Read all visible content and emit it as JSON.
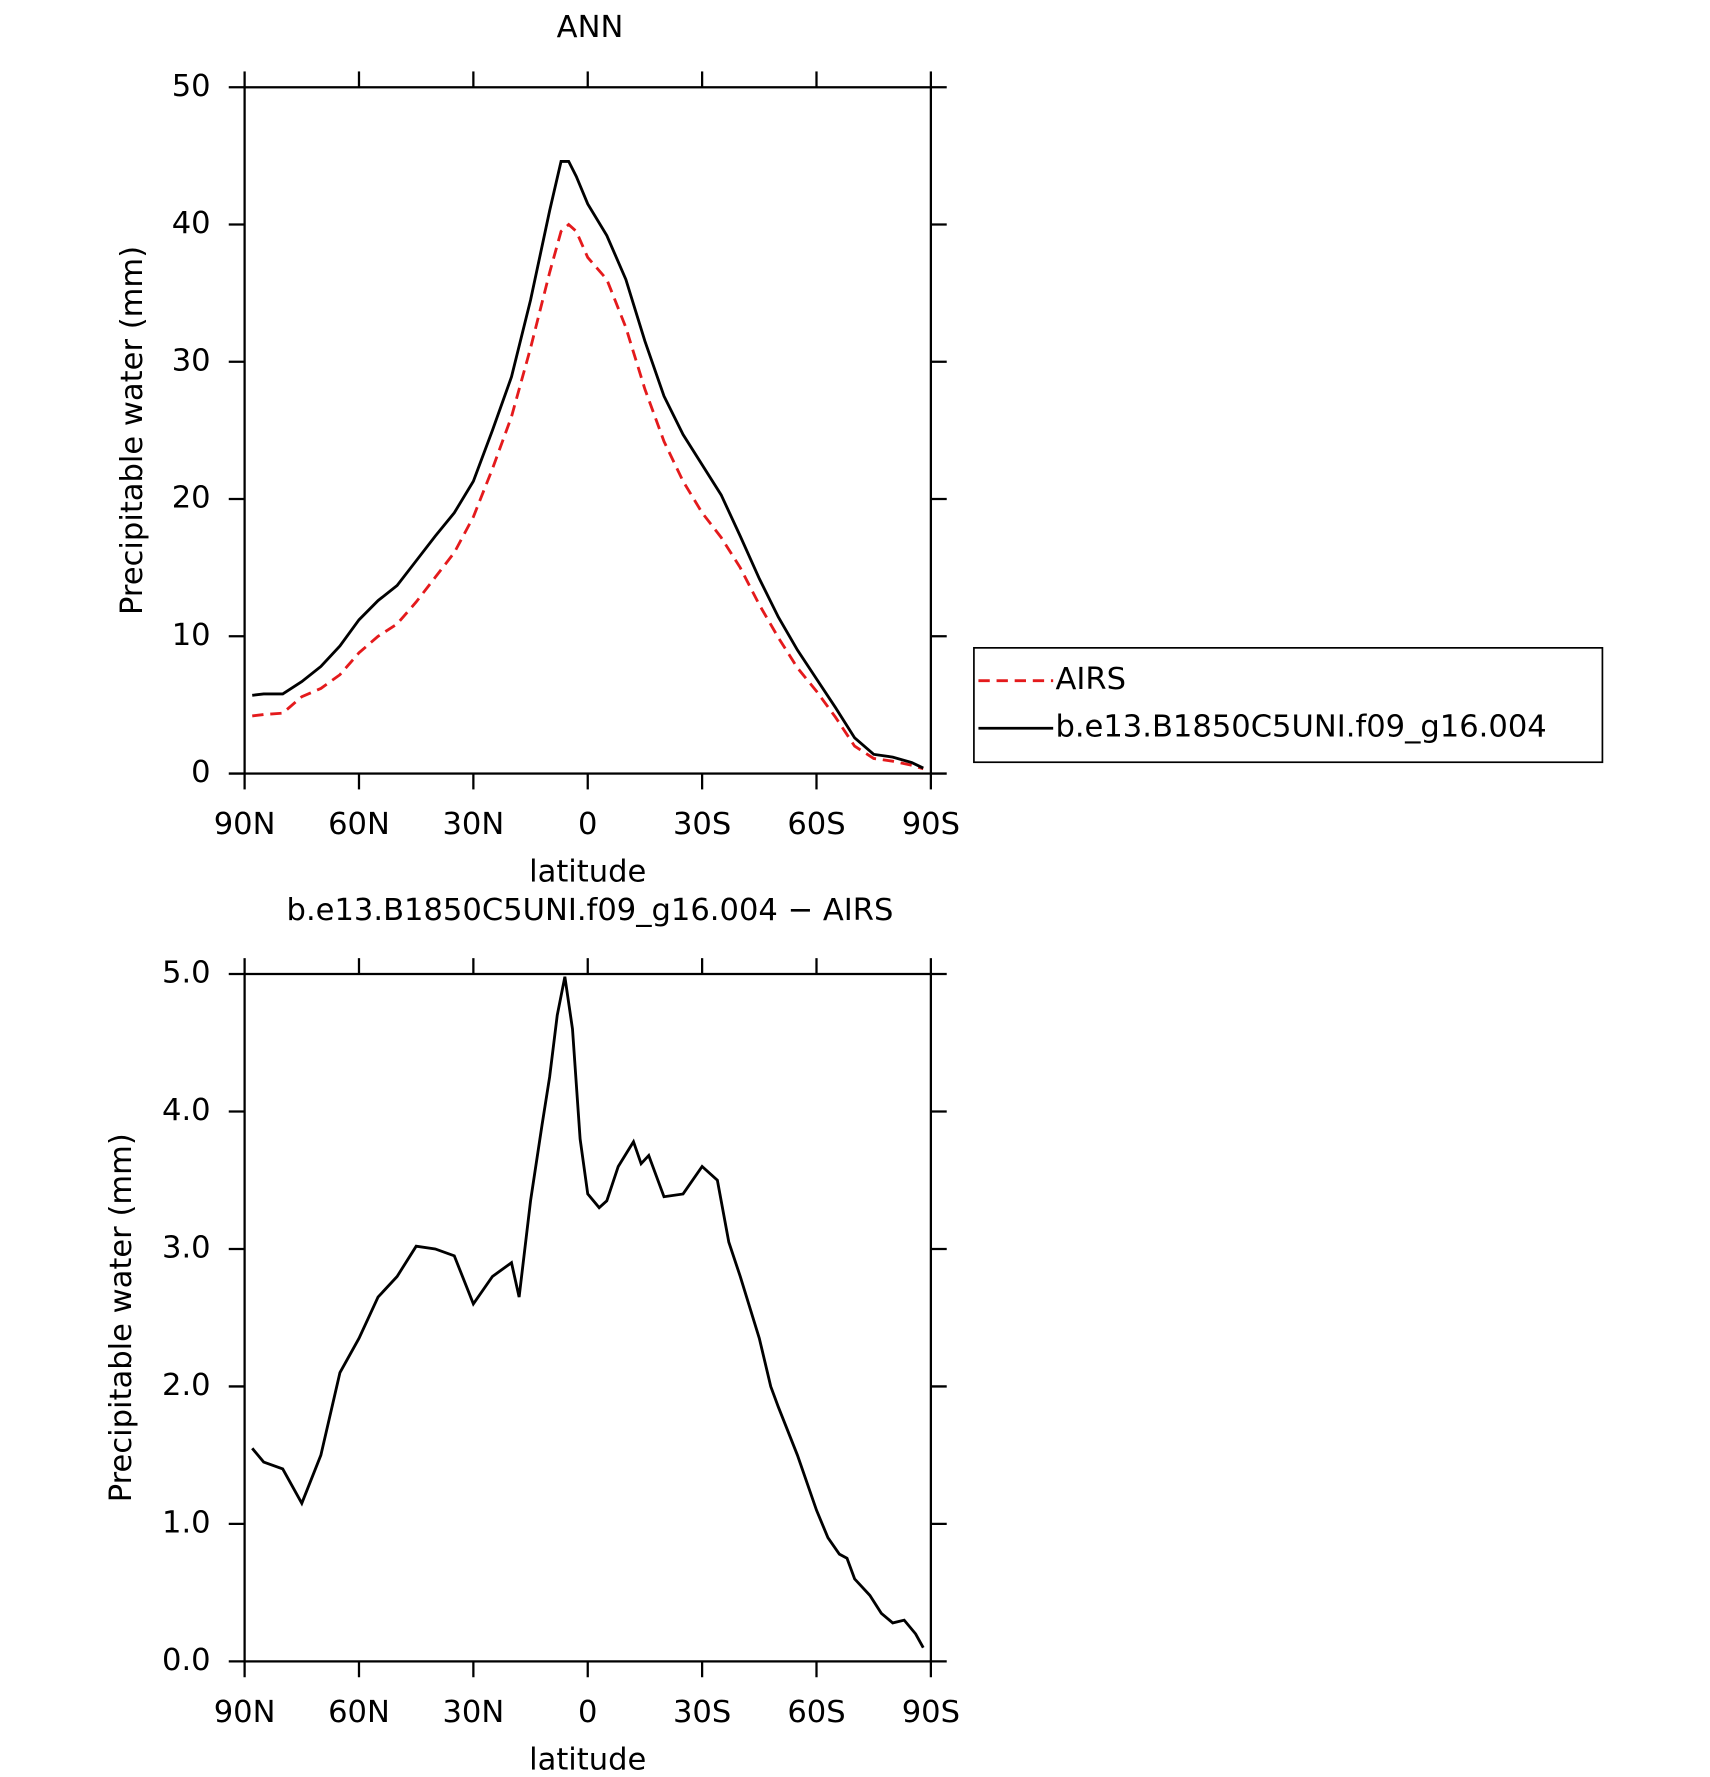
{
  "chart_data": [
    {
      "type": "line",
      "title": "ANN",
      "x_label": "latitude",
      "y_label": "Precipitable water (mm)",
      "x": [
        88,
        85,
        80,
        75,
        70,
        65,
        60,
        55,
        50,
        45,
        40,
        35,
        30,
        25,
        20,
        15,
        10,
        7,
        5,
        3,
        0,
        -5,
        -10,
        -15,
        -20,
        -25,
        -30,
        -35,
        -40,
        -45,
        -50,
        -55,
        -60,
        -65,
        -70,
        -75,
        -80,
        -85,
        -88
      ],
      "series": [
        {
          "name": "AIRS",
          "color": "#e41a1c",
          "dash": true,
          "values": [
            4.2,
            4.3,
            4.4,
            5.6,
            6.2,
            7.2,
            8.8,
            10,
            10.9,
            12.5,
            14.3,
            16.1,
            18.7,
            22.2,
            26,
            31,
            36.5,
            39.5,
            40,
            39.5,
            37.6,
            36,
            32.5,
            28,
            24.2,
            21.3,
            19,
            17.2,
            15,
            12.3,
            9.9,
            7.7,
            6,
            4.1,
            2.0,
            1.1,
            0.9,
            0.6,
            0.35
          ]
        },
        {
          "name": "b.e13.B1850C5UNI.f09_g16.004",
          "color": "#000000",
          "dash": false,
          "values": [
            5.7,
            5.8,
            5.8,
            6.7,
            7.8,
            9.3,
            11.2,
            12.6,
            13.7,
            15.5,
            17.3,
            19.0,
            21.3,
            25.0,
            28.9,
            34.5,
            41,
            44.6,
            44.6,
            43.5,
            41.5,
            39.2,
            36,
            31.5,
            27.5,
            24.7,
            22.5,
            20.3,
            17.3,
            14.2,
            11.4,
            9.0,
            6.9,
            4.8,
            2.6,
            1.4,
            1.2,
            0.8,
            0.4
          ]
        }
      ],
      "xlim": [
        90,
        -90
      ],
      "xticks": [
        {
          "value": 90,
          "label": "90N"
        },
        {
          "value": 60,
          "label": "60N"
        },
        {
          "value": 30,
          "label": "30N"
        },
        0,
        {
          "value": -30,
          "label": "30S"
        },
        {
          "value": -60,
          "label": "60S"
        },
        {
          "value": -90,
          "label": "90S"
        }
      ],
      "ylim": [
        0,
        50
      ],
      "yticks": [
        0,
        10,
        20,
        30,
        40,
        50
      ],
      "legend": "right"
    },
    {
      "type": "line",
      "title": "b.e13.B1850C5UNI.f09_g16.004 − AIRS",
      "x_label": "latitude",
      "y_label": "Precipitable water (mm)",
      "x": [
        88,
        85,
        80,
        75,
        70,
        65,
        60,
        55,
        50,
        45,
        40,
        35,
        30,
        25,
        20,
        18,
        15,
        12,
        10,
        8,
        6,
        4,
        2,
        0,
        -3,
        -5,
        -8,
        -12,
        -14,
        -16,
        -20,
        -25,
        -30,
        -34,
        -37,
        -40,
        -45,
        -48,
        -50,
        -55,
        -60,
        -63,
        -66,
        -68,
        -70,
        -74,
        -77,
        -80,
        -83,
        -86,
        -88
      ],
      "series": [
        {
          "name": "b.e13.B1850C5UNI.f09_g16.004 − AIRS",
          "color": "#000000",
          "dash": false,
          "values": [
            1.55,
            1.45,
            1.4,
            1.15,
            1.5,
            2.1,
            2.35,
            2.65,
            2.8,
            3.02,
            3.0,
            2.95,
            2.6,
            2.8,
            2.9,
            2.65,
            3.35,
            3.9,
            4.25,
            4.7,
            4.98,
            4.6,
            3.8,
            3.4,
            3.3,
            3.35,
            3.6,
            3.78,
            3.62,
            3.68,
            3.38,
            3.4,
            3.6,
            3.5,
            3.05,
            2.8,
            2.35,
            2.0,
            1.85,
            1.5,
            1.1,
            0.9,
            0.78,
            0.75,
            0.6,
            0.48,
            0.35,
            0.28,
            0.3,
            0.2,
            0.1
          ]
        }
      ],
      "xlim": [
        90,
        -90
      ],
      "xticks": [
        {
          "value": 90,
          "label": "90N"
        },
        {
          "value": 60,
          "label": "60N"
        },
        {
          "value": 30,
          "label": "30N"
        },
        0,
        {
          "value": -30,
          "label": "30S"
        },
        {
          "value": -60,
          "label": "60S"
        },
        {
          "value": -90,
          "label": "90S"
        }
      ],
      "ylim": [
        0,
        5
      ],
      "yticks": [
        {
          "value": 0,
          "label": "0.0"
        },
        {
          "value": 1,
          "label": "1.0"
        },
        {
          "value": 2,
          "label": "2.0"
        },
        {
          "value": 3,
          "label": "3.0"
        },
        {
          "value": 4,
          "label": "4.0"
        },
        {
          "value": 5,
          "label": "5.0"
        }
      ]
    }
  ]
}
